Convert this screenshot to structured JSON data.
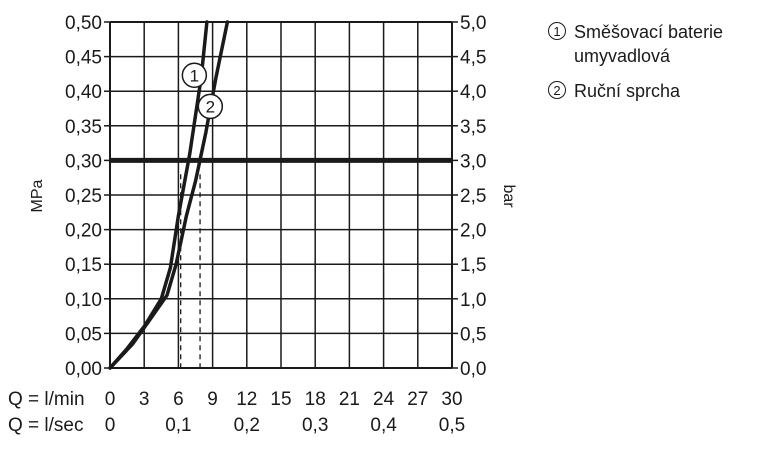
{
  "chart_data": {
    "type": "line",
    "y_left": {
      "label": "MPa",
      "ticks": [
        "0,00",
        "0,05",
        "0,10",
        "0,15",
        "0,20",
        "0,25",
        "0,30",
        "0,35",
        "0,40",
        "0,45",
        "0,50"
      ],
      "range": [
        0,
        0.5
      ]
    },
    "y_right": {
      "label": "bar",
      "ticks": [
        "0,0",
        "0,5",
        "1,0",
        "1,5",
        "2,0",
        "2,5",
        "3,0",
        "3,5",
        "4,0",
        "4,5",
        "5,0"
      ],
      "range": [
        0,
        5.0
      ]
    },
    "x_axes": [
      {
        "label": "Q = l/min",
        "ticks": [
          "0",
          "3",
          "6",
          "9",
          "12",
          "15",
          "18",
          "21",
          "24",
          "27",
          "30"
        ],
        "values": [
          0,
          3,
          6,
          9,
          12,
          15,
          18,
          21,
          24,
          27,
          30
        ]
      },
      {
        "label": "Q = l/sec",
        "ticks": [
          "0",
          "0,1",
          "0,2",
          "0,3",
          "0,4",
          "0,5"
        ],
        "values": [
          0,
          6,
          12,
          18,
          24,
          30
        ]
      }
    ],
    "x_range": [
      0,
      30
    ],
    "grid": true,
    "reference_line": {
      "y": 0.3
    },
    "drop_lines": [
      {
        "x": 6.2,
        "y": 0.28
      },
      {
        "x": 7.9,
        "y": 0.28
      }
    ],
    "series": [
      {
        "marker": "1",
        "x": [
          0,
          1.5,
          3,
          4.5,
          5.3,
          6.0,
          7.0,
          8.0,
          8.5
        ],
        "y": [
          0,
          0.028,
          0.06,
          0.1,
          0.145,
          0.22,
          0.31,
          0.42,
          0.5
        ]
      },
      {
        "marker": "2",
        "x": [
          0,
          2,
          3.5,
          5,
          5.8,
          6.7,
          7.5,
          8.4,
          9.3,
          10.3
        ],
        "y": [
          0,
          0.035,
          0.07,
          0.105,
          0.15,
          0.22,
          0.27,
          0.34,
          0.42,
          0.5
        ]
      }
    ],
    "markers": [
      {
        "text": "1",
        "x": 7.4,
        "y": 0.423
      },
      {
        "text": "2",
        "x": 8.8,
        "y": 0.378
      }
    ]
  },
  "legend": [
    {
      "number": "1",
      "label": "Směšovací baterie umyvadlová"
    },
    {
      "number": "2",
      "label": "Ruční sprcha"
    }
  ]
}
